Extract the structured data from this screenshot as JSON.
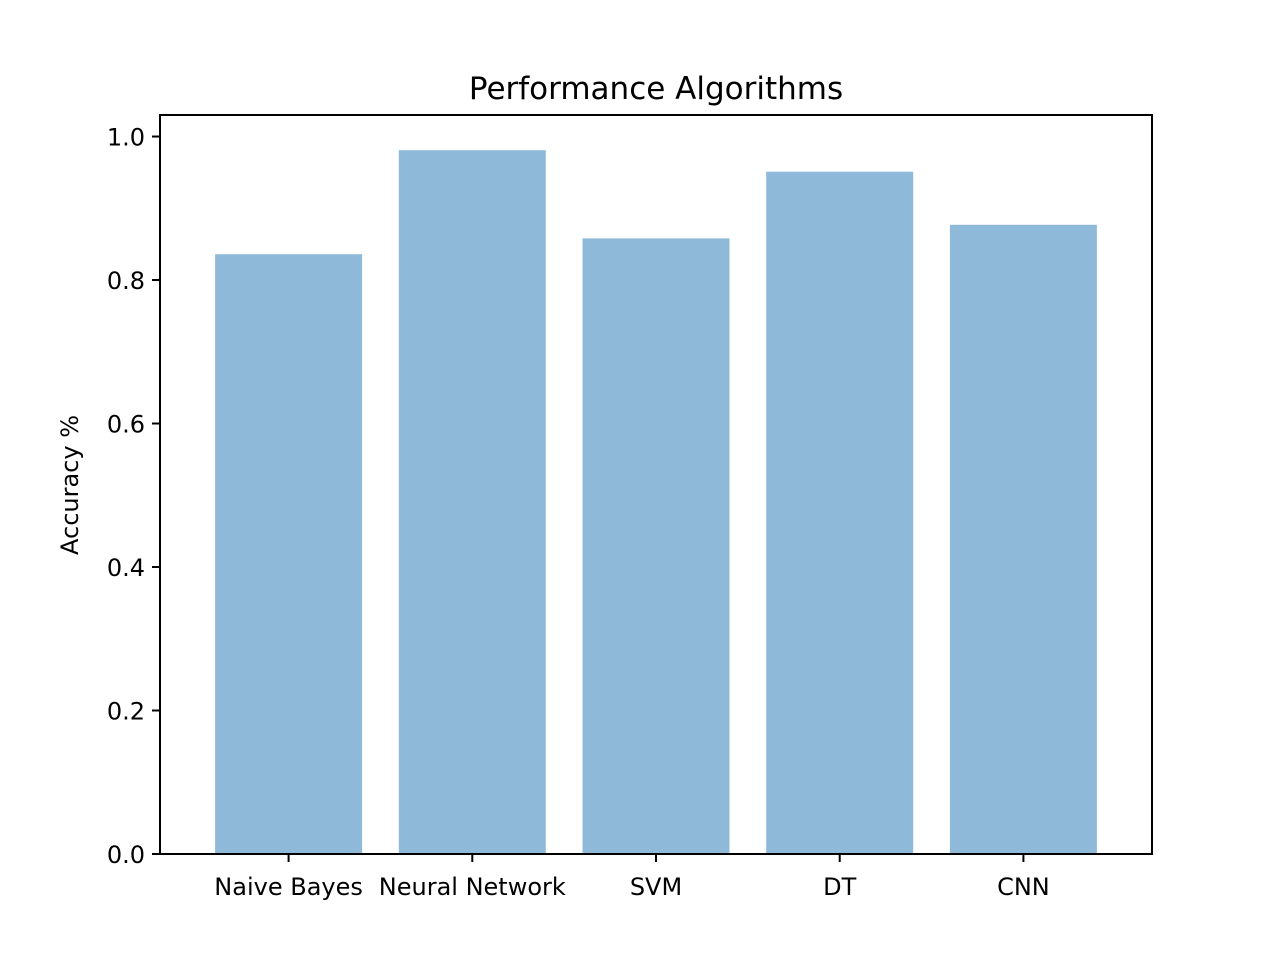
{
  "chart_data": {
    "type": "bar",
    "title": "Performance Algorithms",
    "xlabel": "",
    "ylabel": "Accuracy %",
    "categories": [
      "Naive Bayes",
      "Neural Network",
      "SVM",
      "DT",
      "CNN"
    ],
    "values": [
      0.836,
      0.981,
      0.858,
      0.951,
      0.877
    ],
    "ylim": [
      0,
      1.03
    ],
    "yticks": [
      "0.0",
      "0.2",
      "0.4",
      "0.6",
      "0.8",
      "1.0"
    ],
    "bar_color": "#8fb9d8",
    "grid": false,
    "legend": "none"
  }
}
